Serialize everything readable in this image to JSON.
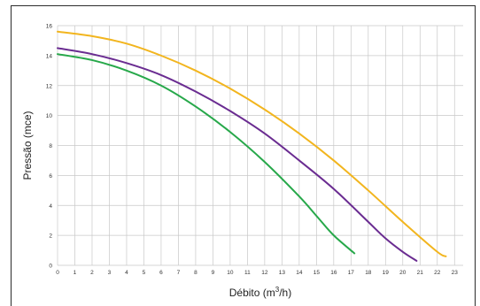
{
  "chart_data": {
    "type": "line",
    "title": "",
    "xlabel_base": "Débito (m",
    "xlabel_sup": "3",
    "xlabel_tail": "/h)",
    "ylabel": "Pressão (mce)",
    "xlim": [
      0,
      23.5
    ],
    "ylim": [
      0,
      16
    ],
    "x_ticks": [
      "0",
      "1",
      "2",
      "3",
      "4",
      "5",
      "6",
      "7",
      "8",
      "9",
      "10",
      "11",
      "12",
      "13",
      "14",
      "15",
      "16",
      "17",
      "18",
      "19",
      "20",
      "21",
      "22",
      "23"
    ],
    "y_ticks": [
      "0",
      "2",
      "4",
      "6",
      "8",
      "10",
      "12",
      "14",
      "16"
    ],
    "grid": true,
    "legend": "none",
    "series": [
      {
        "color": "#f2b51e",
        "x": [
          0,
          2,
          4,
          6,
          8,
          10,
          12,
          14,
          16,
          18,
          20,
          22,
          22.5
        ],
        "y": [
          15.6,
          15.3,
          14.8,
          14.0,
          13.0,
          11.8,
          10.4,
          8.8,
          7.0,
          5.0,
          2.9,
          0.9,
          0.6
        ]
      },
      {
        "color": "#6a2c91",
        "x": [
          0,
          2,
          4,
          6,
          8,
          10,
          12,
          14,
          16,
          18,
          19,
          20,
          20.8
        ],
        "y": [
          14.5,
          14.1,
          13.5,
          12.7,
          11.6,
          10.3,
          8.8,
          7.0,
          5.1,
          2.9,
          1.8,
          0.9,
          0.3
        ]
      },
      {
        "color": "#27a84a",
        "x": [
          0,
          2,
          4,
          6,
          8,
          10,
          12,
          14,
          15,
          16,
          17.2
        ],
        "y": [
          14.1,
          13.7,
          13.0,
          12.0,
          10.6,
          8.9,
          6.9,
          4.6,
          3.3,
          2.0,
          0.8
        ]
      }
    ]
  }
}
